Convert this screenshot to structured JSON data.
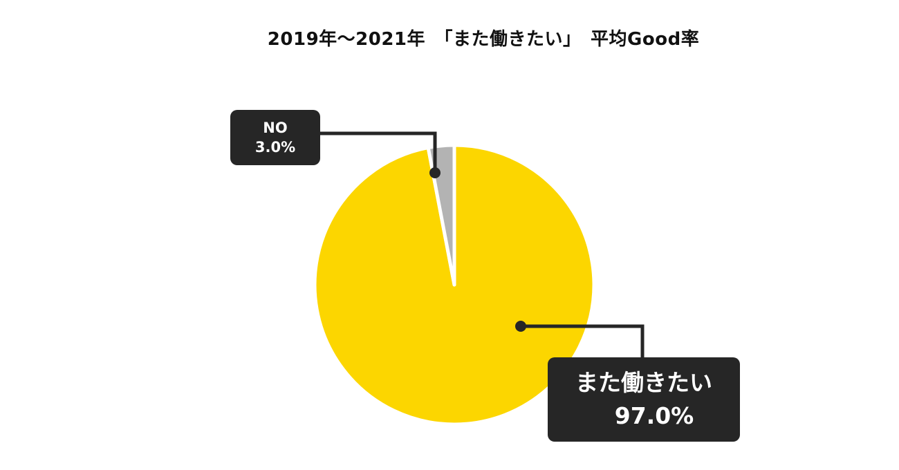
{
  "chart_data": {
    "type": "pie",
    "title": "2019年～2021年　「また働きたい」　平均Good率",
    "slices": [
      {
        "label": "また働きたい",
        "value": 97.0,
        "value_label": "97.0%",
        "color": "#FCD600"
      },
      {
        "label": "NO",
        "value": 3.0,
        "value_label": "3.0%",
        "color": "#B3B3B3"
      }
    ],
    "start_angle_deg": 0,
    "direction": "clockwise",
    "legend": "none",
    "callout_color": "#262626"
  }
}
